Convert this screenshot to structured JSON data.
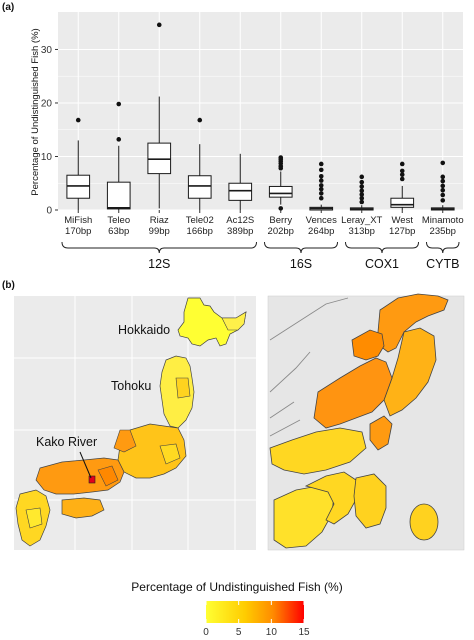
{
  "panel_a_label": "(a)",
  "panel_b_label": "(b)",
  "colors": {
    "panel_bg": "#ebebeb",
    "grid": "#ffffff",
    "box_fill": "#ffffff",
    "box_line": "#1a1a1a",
    "map_low": "#ffff33",
    "map_mid": "#ffa500",
    "map_high": "#ff0000"
  },
  "chart_data": [
    {
      "type": "box",
      "ylabel": "Percentage of Undistinguished Fish (%)",
      "ylim": [
        0,
        37
      ],
      "yticks": [
        0,
        10,
        20,
        30
      ],
      "grid": true,
      "categories": [
        {
          "name": "MiFish",
          "length": "170bp",
          "min": 0,
          "q1": 2.2,
          "median": 4.5,
          "q3": 6.5,
          "max": 13,
          "outliers": [
            16.8
          ]
        },
        {
          "name": "Teleo",
          "length": "63bp",
          "min": 0,
          "q1": 0.2,
          "median": 0.4,
          "q3": 5.2,
          "max": 12,
          "outliers": [
            13.2,
            19.8
          ]
        },
        {
          "name": "Riaz",
          "length": "99bp",
          "min": 0.3,
          "q1": 6.8,
          "median": 9.5,
          "q3": 12.5,
          "max": 21.2,
          "outliers": [
            34.6
          ]
        },
        {
          "name": "Tele02",
          "length": "166bp",
          "min": 0,
          "q1": 2.2,
          "median": 4.5,
          "q3": 6.4,
          "max": 12.3,
          "outliers": [
            16.8
          ]
        },
        {
          "name": "Ac12S",
          "length": "389bp",
          "min": 0,
          "q1": 1.8,
          "median": 3.6,
          "q3": 5.0,
          "max": 10.5,
          "outliers": []
        },
        {
          "name": "Berry",
          "length": "202bp",
          "min": 1.0,
          "q1": 2.4,
          "median": 3.1,
          "q3": 4.4,
          "max": 7.2,
          "outliers": [
            7.8,
            8.2,
            8.7,
            9.1,
            9.5,
            9.8,
            0.3
          ]
        },
        {
          "name": "Vences",
          "length": "264bp",
          "min": 0,
          "q1": 0,
          "median": 0.3,
          "q3": 0.5,
          "max": 1.0,
          "outliers": [
            2.2,
            3.1,
            3.9,
            4.6,
            5.5,
            6.3,
            7.5,
            8.6
          ]
        },
        {
          "name": "Leray_XT",
          "length": "313bp",
          "min": 0,
          "q1": 0,
          "median": 0.2,
          "q3": 0.4,
          "max": 0.9,
          "outliers": [
            1.5,
            2.2,
            2.9,
            3.6,
            4.4,
            5.2,
            6.2
          ]
        },
        {
          "name": "West",
          "length": "127bp",
          "min": 0,
          "q1": 0.5,
          "median": 1.0,
          "q3": 2.2,
          "max": 4.5,
          "outliers": [
            5.8,
            6.6,
            7.3,
            8.6
          ]
        },
        {
          "name": "Minamoto",
          "length": "235bp",
          "min": 0,
          "q1": 0,
          "median": 0.2,
          "q3": 0.4,
          "max": 0.9,
          "outliers": [
            1.8,
            2.8,
            3.7,
            4.5,
            5.4,
            6.2,
            8.8
          ]
        }
      ],
      "groups": [
        {
          "name": "12S",
          "from": 0,
          "to": 4
        },
        {
          "name": "16S",
          "from": 5,
          "to": 6
        },
        {
          "name": "COX1",
          "from": 7,
          "to": 8
        },
        {
          "name": "CYTB",
          "from": 9,
          "to": 9
        }
      ]
    },
    {
      "type": "heatmap",
      "annotations": [
        "Hokkaido",
        "Tohoku",
        "Kako River"
      ],
      "legend_title": "Percentage of Undistinguished Fish (%)",
      "legend_ticks": [
        0,
        5,
        10,
        15
      ],
      "legend_range": [
        0,
        15
      ]
    }
  ]
}
